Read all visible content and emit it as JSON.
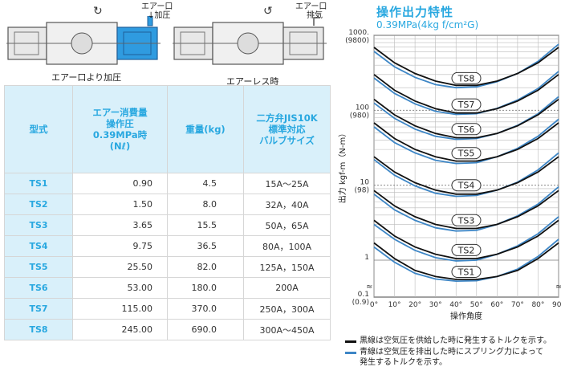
{
  "diagrams": {
    "left_inlet_label": "エアー口",
    "left_inlet_sub": "加圧",
    "left_caption": "エアー口より加圧",
    "right_inlet_label": "エアー口",
    "right_inlet_sub": "排気",
    "right_caption": "エアーレス時"
  },
  "table": {
    "headers": {
      "model": "型式",
      "air": [
        "エアー消費量",
        "操作圧",
        "0.39MPa時",
        "(Nℓ)"
      ],
      "weight": "重量(kg)",
      "valve": [
        "二方弁JIS10K",
        "標準対応",
        "バルブサイズ"
      ]
    },
    "rows": [
      {
        "model": "TS1",
        "air": "0.90",
        "weight": "4.5",
        "valve": "15A～25A"
      },
      {
        "model": "TS2",
        "air": "1.50",
        "weight": "8.0",
        "valve": "32A，40A"
      },
      {
        "model": "TS3",
        "air": "3.65",
        "weight": "15.5",
        "valve": "50A，65A"
      },
      {
        "model": "TS4",
        "air": "9.75",
        "weight": "36.5",
        "valve": "80A，100A"
      },
      {
        "model": "TS5",
        "air": "25.50",
        "weight": "82.0",
        "valve": "125A，150A"
      },
      {
        "model": "TS6",
        "air": "53.00",
        "weight": "180.0",
        "valve": "200A"
      },
      {
        "model": "TS7",
        "air": "115.00",
        "weight": "370.0",
        "valve": "250A，300A"
      },
      {
        "model": "TS8",
        "air": "245.00",
        "weight": "690.0",
        "valve": "300A～450A"
      }
    ]
  },
  "chart_title": "操作出力特性",
  "chart_subtitle": "0.39MPa(4kg f/cm²G)",
  "legend": {
    "black": "黒線は空気圧を供給した時に発生するトルクを示す。",
    "blue_line1": "青線は空気圧を排出した時にスプリング力によって",
    "blue_line2": "発生するトルクを示す。"
  },
  "colors": {
    "accent": "#29a8e0",
    "header_bg": "#d9f0fa",
    "black_line": "#111111",
    "blue_line": "#3d86c6"
  },
  "chart_data": {
    "type": "line",
    "ylabel": "出力 kgf-m（N-m）",
    "xlabel": "操作角度",
    "yscale": "log",
    "ylim": [
      0.1,
      1000
    ],
    "xlim": [
      0,
      90
    ],
    "xticks": [
      "0°",
      "10°",
      "20°",
      "30°",
      "40°",
      "50°",
      "60°",
      "70°",
      "80°",
      "90°"
    ],
    "yticks": [
      {
        "value": 1000,
        "label": "1000.",
        "sub": "(9800)"
      },
      {
        "value": 100,
        "label": "100",
        "sub": "(980)"
      },
      {
        "value": 10,
        "label": "10",
        "sub": "(98)"
      },
      {
        "value": 1,
        "label": "1",
        "sub": ""
      },
      {
        "value": 0.1,
        "label": "0.1",
        "sub": "(0.9)"
      }
    ],
    "x": [
      0,
      10,
      20,
      30,
      40,
      50,
      60,
      70,
      80,
      90
    ],
    "series": [
      {
        "name": "TS8",
        "black": [
          690,
          430,
          310,
          245,
          215,
          215,
          245,
          310,
          430,
          690
        ],
        "blue": [
          610,
          380,
          275,
          220,
          200,
          205,
          240,
          310,
          450,
          760
        ],
        "label_at": 220
      },
      {
        "name": "TS7",
        "black": [
          300,
          185,
          133,
          105,
          92,
          92,
          105,
          133,
          185,
          300
        ],
        "blue": [
          270,
          168,
          122,
          97,
          88,
          90,
          106,
          137,
          195,
          330
        ],
        "label_at": 98
      },
      {
        "name": "TS6",
        "black": [
          140,
          87,
          62,
          49,
          43,
          43,
          49,
          62,
          87,
          140
        ],
        "blue": [
          125,
          78,
          56,
          45,
          41,
          42,
          49,
          63,
          90,
          152
        ],
        "label_at": 46
      },
      {
        "name": "TS5",
        "black": [
          68,
          42,
          30,
          24,
          21,
          21,
          24,
          30,
          42,
          68
        ],
        "blue": [
          60,
          37,
          27,
          21.5,
          19.5,
          20,
          24,
          31,
          45,
          76
        ],
        "label_at": 22
      },
      {
        "name": "TS4",
        "black": [
          24,
          15,
          10.8,
          8.6,
          7.6,
          7.6,
          8.6,
          10.8,
          15,
          24
        ],
        "blue": [
          22,
          13.6,
          9.8,
          7.8,
          7.1,
          7.3,
          8.6,
          11,
          16,
          27
        ],
        "label_at": 8.2
      },
      {
        "name": "TS3",
        "black": [
          8.5,
          5.3,
          3.8,
          3.0,
          2.65,
          2.65,
          3.0,
          3.8,
          5.3,
          8.5
        ],
        "blue": [
          7.6,
          4.7,
          3.4,
          2.7,
          2.45,
          2.5,
          3.0,
          3.9,
          5.6,
          9.5
        ],
        "label_at": 2.8
      },
      {
        "name": "TS2",
        "black": [
          3.4,
          2.1,
          1.5,
          1.2,
          1.05,
          1.05,
          1.2,
          1.5,
          2.1,
          3.4
        ],
        "blue": [
          3.0,
          1.9,
          1.35,
          1.08,
          0.98,
          1.0,
          1.2,
          1.55,
          2.25,
          3.8
        ],
        "label_at": 1.12
      },
      {
        "name": "TS1",
        "black": [
          1.7,
          1.05,
          0.75,
          0.6,
          0.53,
          0.53,
          0.6,
          0.75,
          1.05,
          1.7
        ],
        "blue": [
          1.5,
          0.95,
          0.68,
          0.54,
          0.49,
          0.5,
          0.6,
          0.78,
          1.12,
          1.9
        ],
        "label_at": 0.56
      }
    ]
  }
}
